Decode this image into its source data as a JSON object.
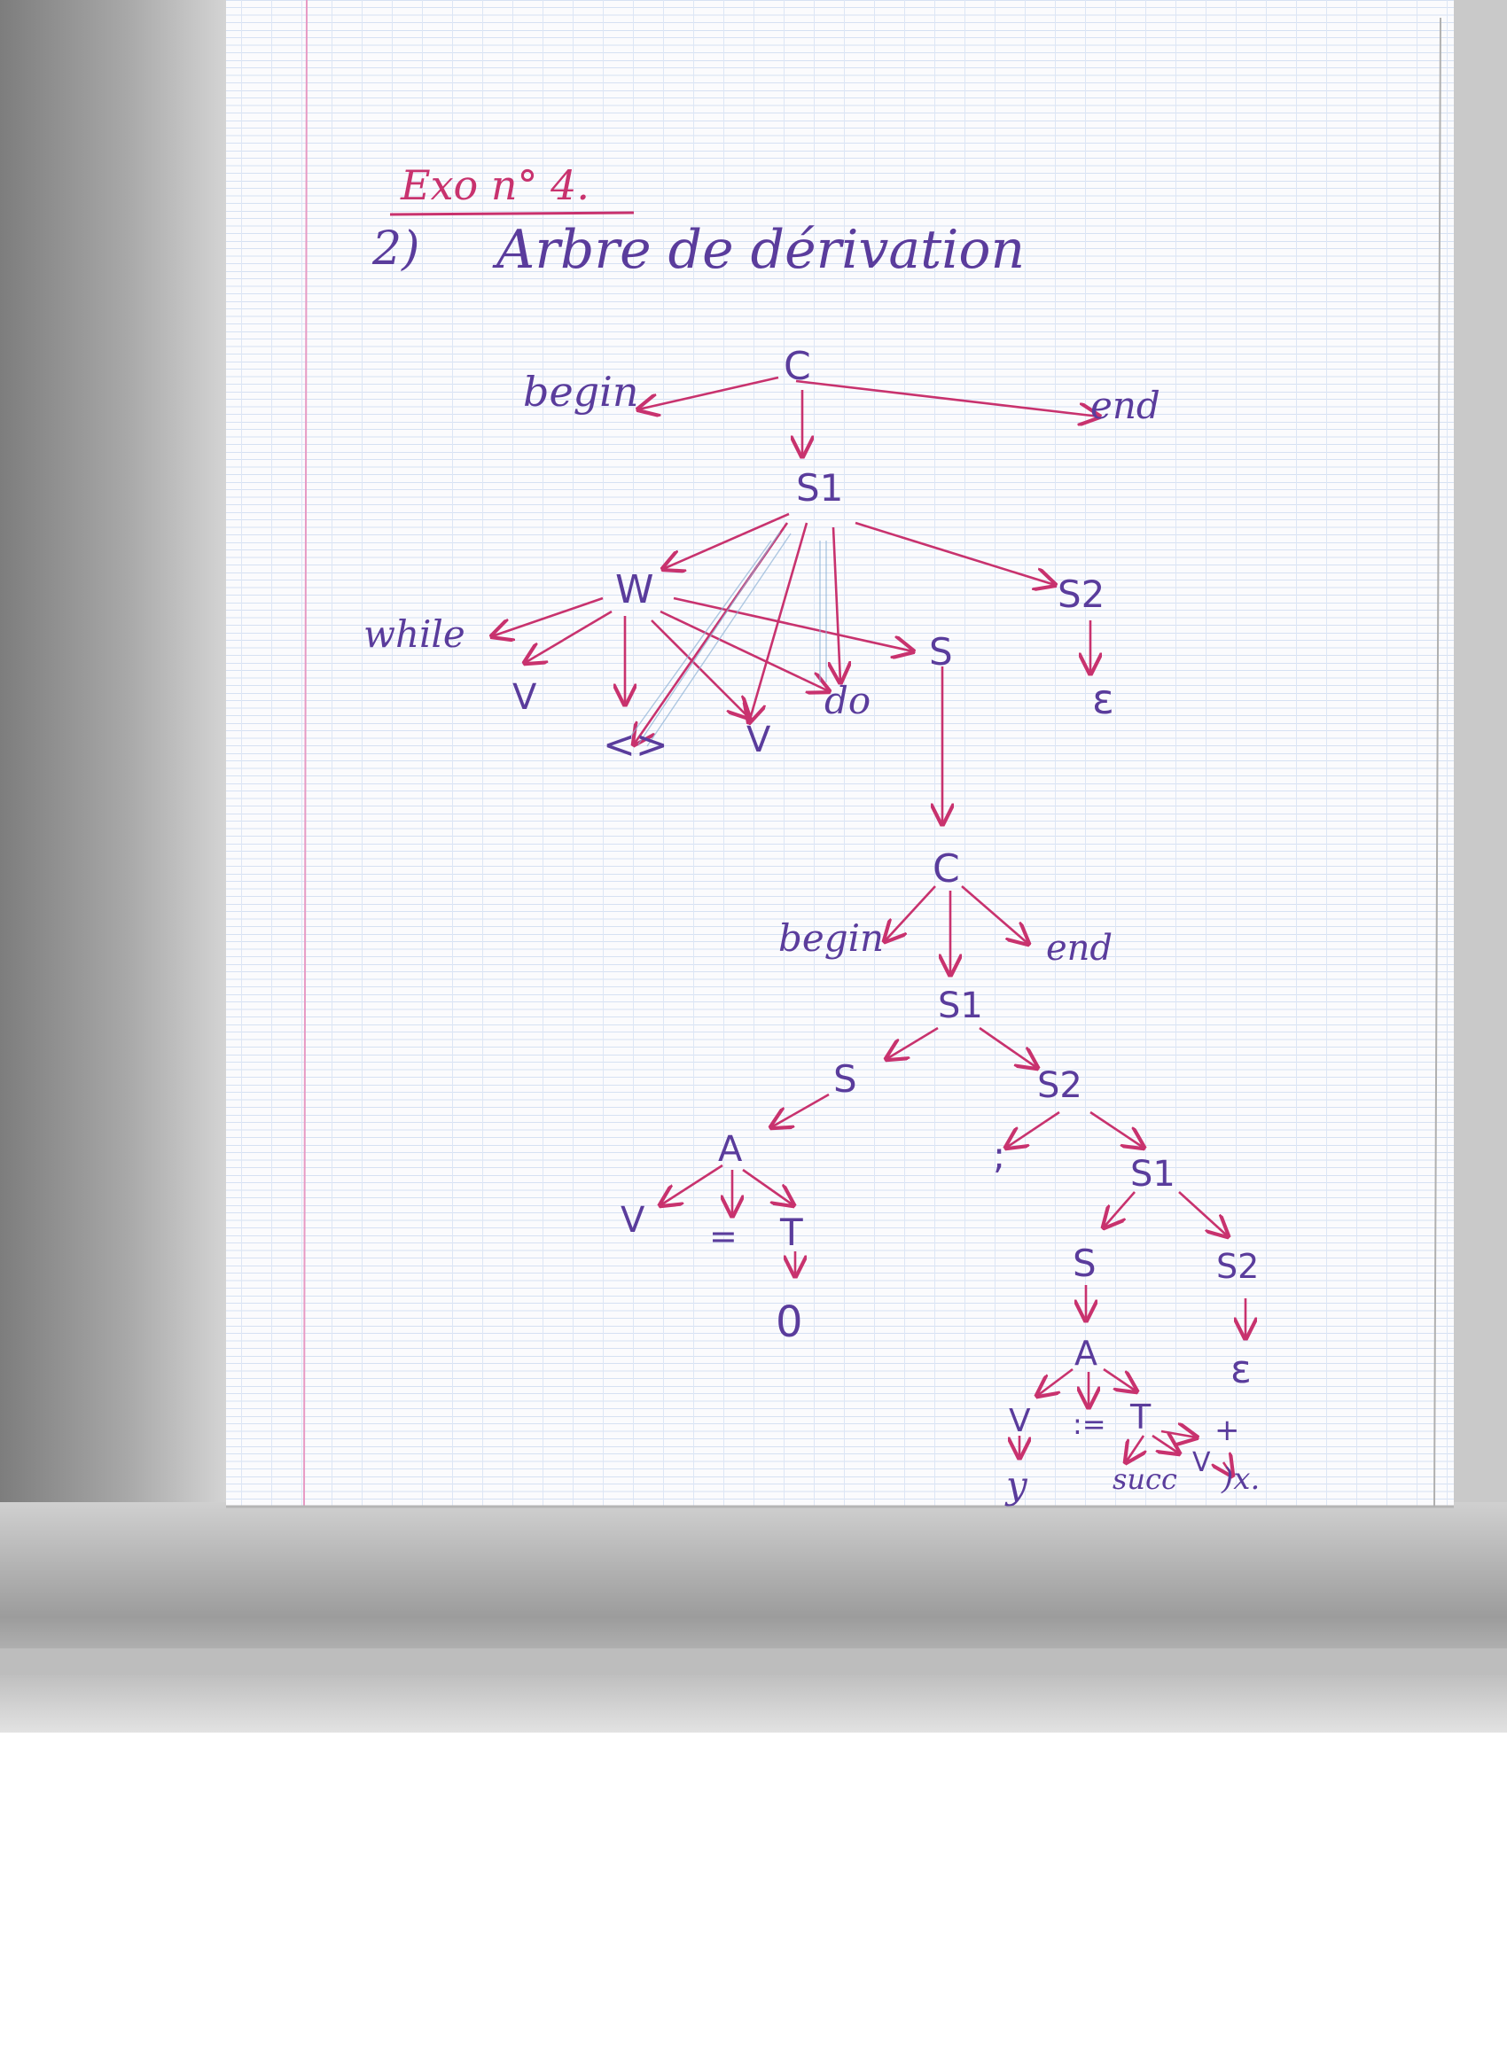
{
  "header": {
    "exercise": "Exo n° 4.",
    "question": "2)",
    "title": "Arbre de dérivation"
  },
  "colors": {
    "red_ink": "#c8326e",
    "purple_ink": "#5a3c9c",
    "paper_margin_red": "#e79ac4",
    "paper_grid_blue": "#c9d8f0",
    "shadow": "#9a9a9a"
  },
  "tree": {
    "root": "C",
    "root_begin": "begin",
    "root_end": "end",
    "s1": "S1",
    "while_node": "W",
    "while_kw": "while",
    "while_v1": "V",
    "while_op": "<>",
    "while_v2": "V",
    "while_do": "do",
    "while_s": "S",
    "s2": "S2",
    "s2_eps": "ε",
    "c2": "C",
    "c2_begin": "begin",
    "c2_end": "end",
    "c2_s1": "S1",
    "c2_s": "S",
    "c2_s2": "S2",
    "a1": "A",
    "a1_v": "V",
    "a1_eq": "=",
    "a1_t": "T",
    "a1_zero": "0",
    "semicolon": ";",
    "s1b": "S1",
    "s1b_s": "S",
    "s1b_s2": "S2",
    "s1b_eps": "ε",
    "a2": "A",
    "a2_v": "V",
    "a2_assign": ":=",
    "a2_t": "T",
    "a2_y": "y",
    "a2_plus": "+",
    "a2_succ": "succ",
    "a2_v2": "V",
    "a2_x": ")x."
  }
}
